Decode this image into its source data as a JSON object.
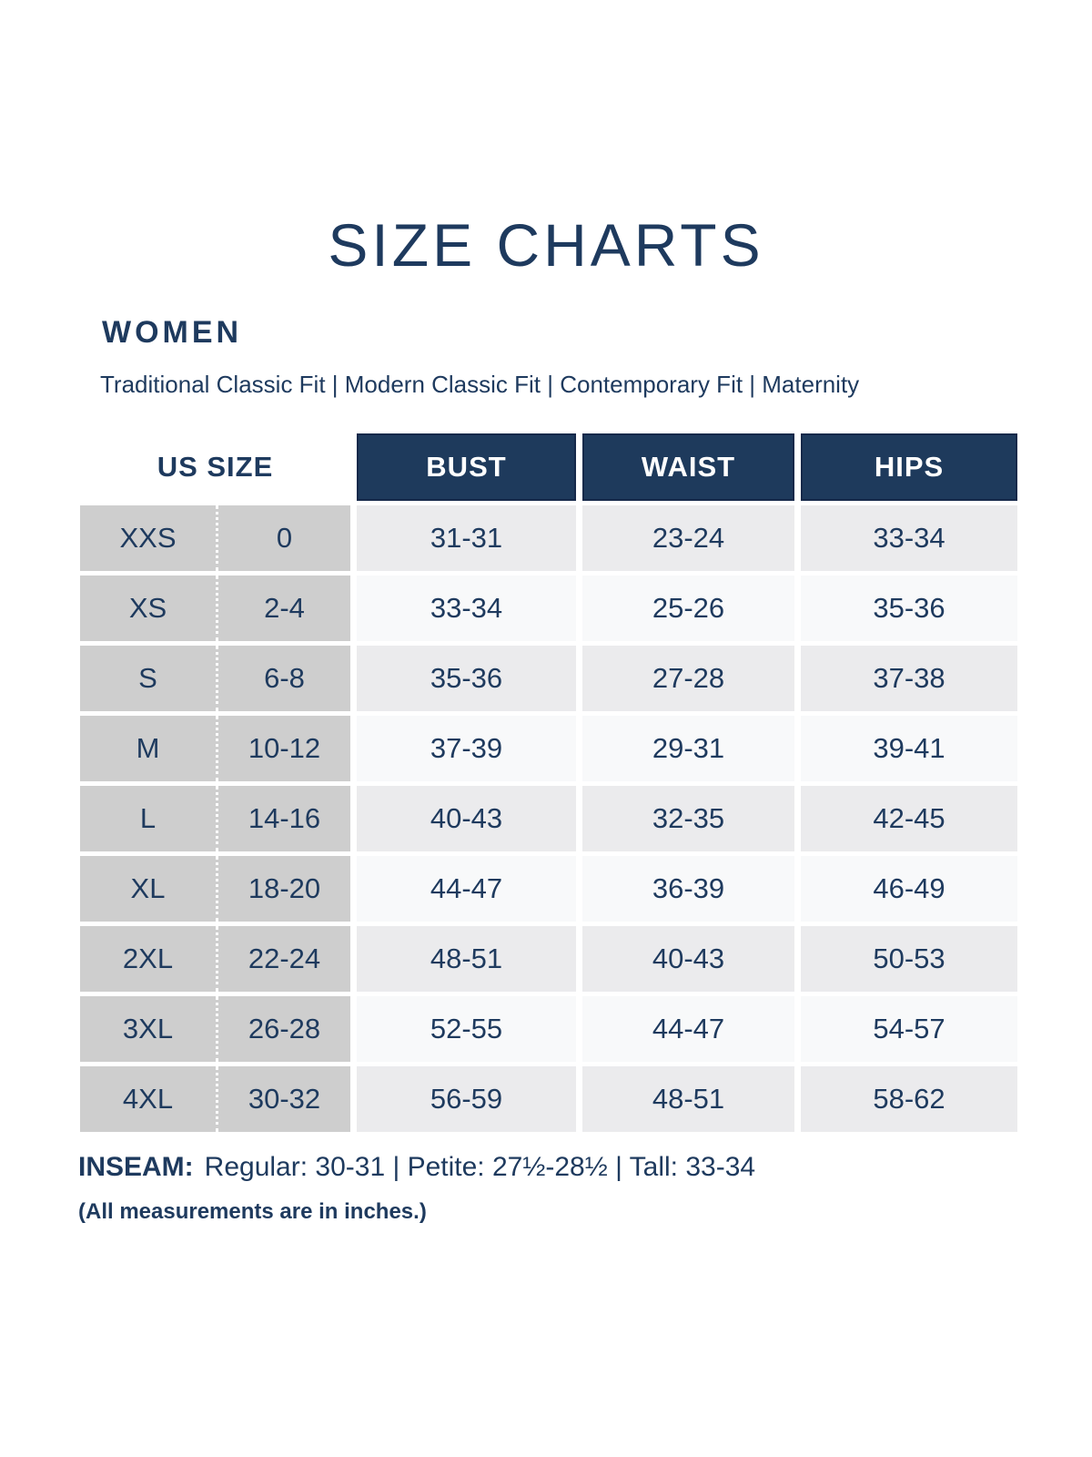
{
  "page": {
    "title": "SIZE CHARTS",
    "section_heading": "WOMEN",
    "fit_options": "Traditional Classic Fit  |  Modern Classic Fit  |  Contemporary Fit  |  Maternity"
  },
  "colors": {
    "navy_text": "#1e3a5e",
    "header_bg": "#1e3a5c",
    "size_col_bg": "#cecece",
    "row_shaded": "#ebebed",
    "row_plain": "#f8f9fa"
  },
  "table": {
    "us_size_header": "US SIZE",
    "columns": [
      "BUST",
      "WAIST",
      "HIPS"
    ],
    "rows": [
      {
        "size": "XXS",
        "us": "0",
        "bust": "31-31",
        "waist": "23-24",
        "hips": "33-34"
      },
      {
        "size": "XS",
        "us": "2-4",
        "bust": "33-34",
        "waist": "25-26",
        "hips": "35-36"
      },
      {
        "size": "S",
        "us": "6-8",
        "bust": "35-36",
        "waist": "27-28",
        "hips": "37-38"
      },
      {
        "size": "M",
        "us": "10-12",
        "bust": "37-39",
        "waist": "29-31",
        "hips": "39-41"
      },
      {
        "size": "L",
        "us": "14-16",
        "bust": "40-43",
        "waist": "32-35",
        "hips": "42-45"
      },
      {
        "size": "XL",
        "us": "18-20",
        "bust": "44-47",
        "waist": "36-39",
        "hips": "46-49"
      },
      {
        "size": "2XL",
        "us": "22-24",
        "bust": "48-51",
        "waist": "40-43",
        "hips": "50-53"
      },
      {
        "size": "3XL",
        "us": "26-28",
        "bust": "52-55",
        "waist": "44-47",
        "hips": "54-57"
      },
      {
        "size": "4XL",
        "us": "30-32",
        "bust": "56-59",
        "waist": "48-51",
        "hips": "58-62"
      }
    ]
  },
  "footer": {
    "inseam_label": "INSEAM:",
    "inseam_text": "Regular: 30-31  |  Petite: 27½-28½  |  Tall: 33-34",
    "note": "(All measurements are in inches.)"
  }
}
